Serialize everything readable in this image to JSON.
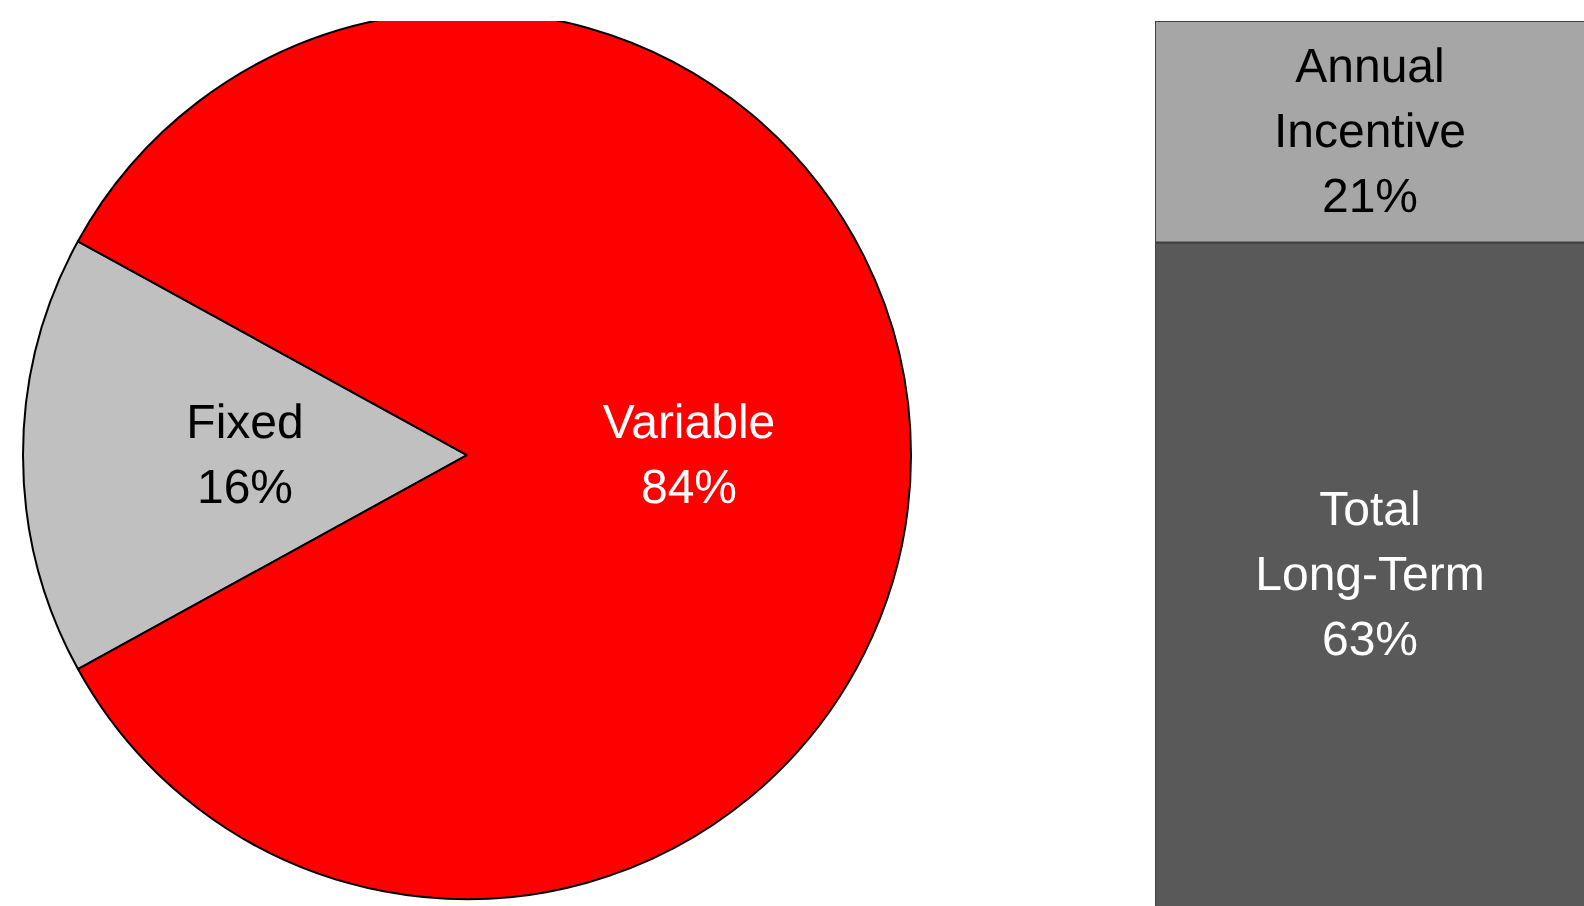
{
  "chart_data": [
    {
      "type": "pie",
      "categories": [
        "Fixed",
        "Variable"
      ],
      "values": [
        16,
        84
      ],
      "colors": [
        "#c0c0c0",
        "#ff0000"
      ],
      "value_labels": [
        "16%",
        "84%"
      ],
      "legend": false
    },
    {
      "type": "bar",
      "stacked": true,
      "categories": [
        null
      ],
      "legend": false,
      "series": [
        {
          "name": "Total Long-Term",
          "color": "#595959",
          "values": [
            63
          ],
          "value_labels": [
            "63%"
          ]
        },
        {
          "name": "Annual Incentive",
          "color": "#a6a6a6",
          "values": [
            21
          ],
          "value_labels": [
            "21%"
          ]
        }
      ]
    }
  ]
}
